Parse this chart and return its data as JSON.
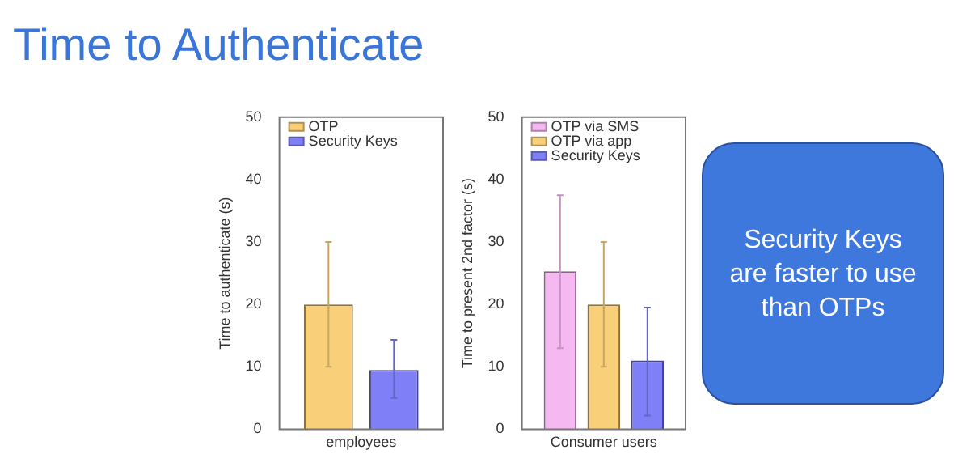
{
  "chart_data": [
    {
      "type": "bar",
      "title": "Time to Authenticate",
      "ylabel": "Time to authenticate (s)",
      "categories": [
        "employees"
      ],
      "ylim": [
        0,
        50
      ],
      "yticks": [
        0,
        10,
        20,
        30,
        40,
        50
      ],
      "legend": "top left",
      "grid": false,
      "series": [
        {
          "name": "OTP",
          "color": "#f9cf7a",
          "values": [
            20
          ],
          "errors": [
            [
              10,
              30
            ]
          ]
        },
        {
          "name": "Security Keys",
          "color": "#7f7ff7",
          "values": [
            9.5
          ],
          "errors": [
            [
              5,
              14.3
            ]
          ]
        }
      ]
    },
    {
      "type": "bar",
      "ylabel": "Time to present 2nd factor (s)",
      "categories": [
        "Consumer users"
      ],
      "ylim": [
        0,
        50
      ],
      "yticks": [
        0,
        10,
        20,
        30,
        40,
        50
      ],
      "legend": "top left",
      "grid": false,
      "series": [
        {
          "name": "OTP via SMS",
          "color": "#f5b8f0",
          "values": [
            25.3
          ],
          "errors": [
            [
              13,
              37.5
            ]
          ]
        },
        {
          "name": "OTP via app",
          "color": "#f9cf7a",
          "values": [
            20
          ],
          "errors": [
            [
              10,
              30
            ]
          ]
        },
        {
          "name": "Security Keys",
          "color": "#7f7ff7",
          "values": [
            11
          ],
          "errors": [
            [
              2.2,
              19.5
            ]
          ]
        }
      ]
    },
    {
      "type": "other",
      "title": "Security Keys are faster to use than OTPs"
    }
  ]
}
